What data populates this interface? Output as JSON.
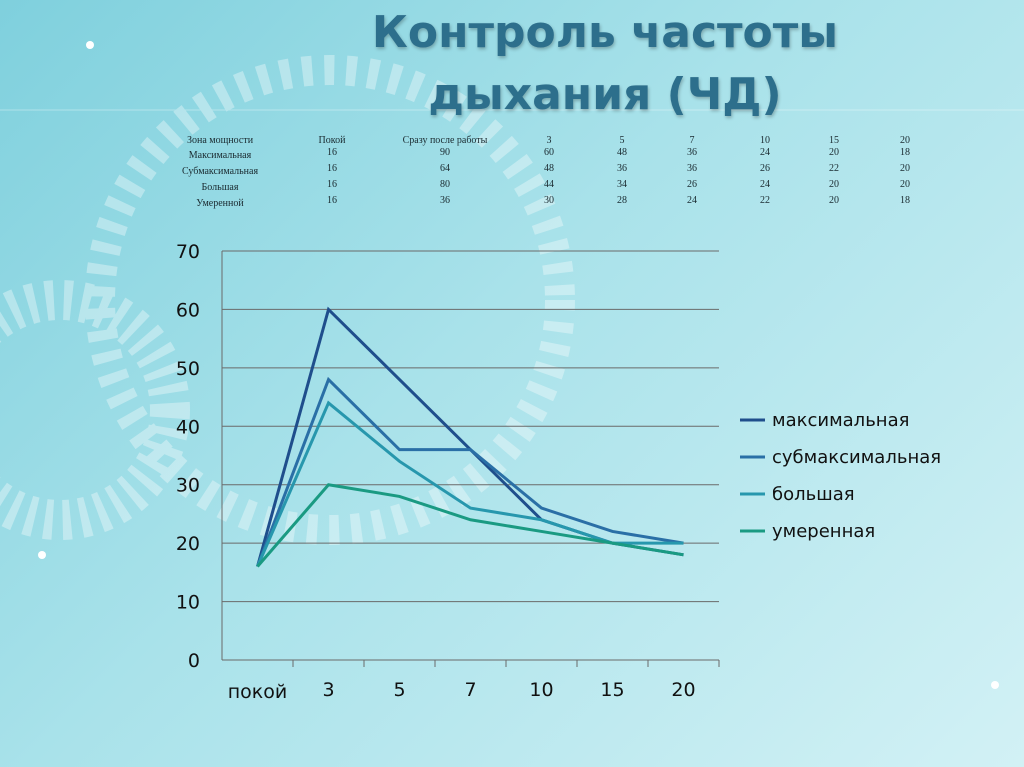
{
  "title": "Контроль частоты дыхания (ЧД)",
  "table": {
    "header": [
      "Зона мощности",
      "Покой",
      "Сразу после работы",
      "3",
      "5",
      "7",
      "10",
      "15",
      "20"
    ],
    "rows": [
      [
        "Максимальная",
        16,
        90,
        60,
        48,
        36,
        24,
        20,
        18
      ],
      [
        "Субмаксимальная",
        16,
        64,
        48,
        36,
        36,
        26,
        22,
        20
      ],
      [
        "Большая",
        16,
        80,
        44,
        34,
        26,
        24,
        20,
        20
      ],
      [
        "Умеренной",
        16,
        36,
        30,
        28,
        24,
        22,
        20,
        18
      ]
    ]
  },
  "chart_data": {
    "type": "line",
    "categories": [
      "покой",
      "3",
      "5",
      "7",
      "10",
      "15",
      "20"
    ],
    "series": [
      {
        "name": "максимальная",
        "color": "#1f4e8c",
        "values": [
          16,
          60,
          48,
          36,
          24,
          20,
          18
        ]
      },
      {
        "name": "субмаксимальная",
        "color": "#2a6fa6",
        "values": [
          16,
          48,
          36,
          36,
          26,
          22,
          20
        ]
      },
      {
        "name": "большая",
        "color": "#2797ad",
        "values": [
          16,
          44,
          34,
          26,
          24,
          20,
          20
        ]
      },
      {
        "name": "умеренная",
        "color": "#1a9a82",
        "values": [
          16,
          30,
          28,
          24,
          22,
          20,
          18
        ]
      }
    ],
    "ylim": [
      0,
      70
    ],
    "yticks": [
      0,
      10,
      20,
      30,
      40,
      50,
      60,
      70
    ],
    "grid": true,
    "legend": "right"
  }
}
